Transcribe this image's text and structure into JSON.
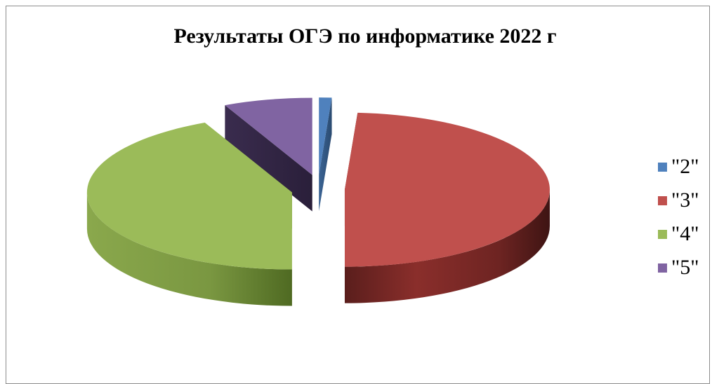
{
  "chart_data": {
    "type": "pie",
    "title": "Результаты ОГЭ по информатике 2022 г",
    "categories": [
      "\"2\"",
      "\"3\"",
      "\"4\"",
      "\"5\""
    ],
    "values": [
      1,
      49,
      43,
      7
    ],
    "colors": [
      "#4f81bd",
      "#c0504d",
      "#9bbb59",
      "#8064a2"
    ],
    "legend_position": "right",
    "style": "3d-exploded"
  }
}
